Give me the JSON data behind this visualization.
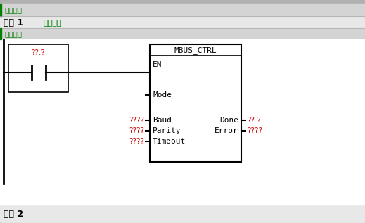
{
  "bg_color": "#e8e8e8",
  "white_bg": "#ffffff",
  "light_gray_bar": "#d4d4d4",
  "green_text_color": "#008000",
  "red_text_color": "#cc0000",
  "black_color": "#000000",
  "program_comment": "程序注释",
  "network1_label": "网络 1",
  "network1_title": "网络标题",
  "network_comment": "网络注释",
  "network2_label": "网络 2",
  "contact_label": "??.?",
  "baud_label": "????",
  "parity_label": "????",
  "timeout_label": "????",
  "done_label": "??.?",
  "error_label": "????",
  "block_title": "MBUS_CTRL",
  "figsize": [
    5.19,
    3.17
  ],
  "dpi": 100
}
